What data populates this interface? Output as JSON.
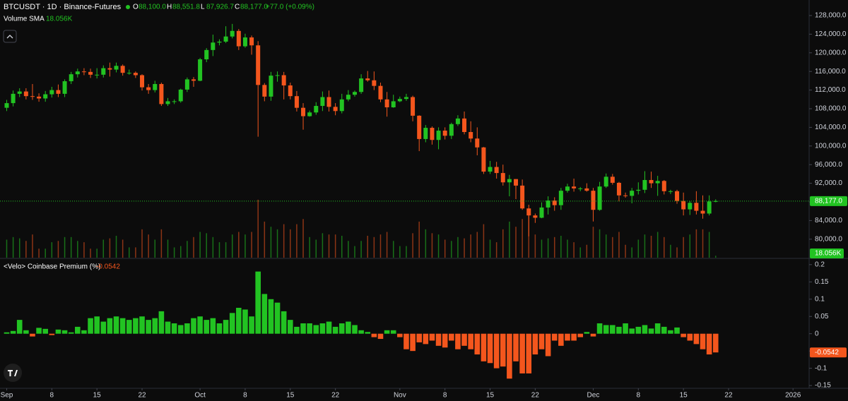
{
  "chart_data": [
    {
      "type": "candlestick",
      "title": "BTCUSDT · 1D · Binance-Futures",
      "ohlc_labels": [
        {
          "key": "O",
          "text": "88,100.0"
        },
        {
          "key": "H",
          "text": "88,551.8"
        },
        {
          "key": "L",
          "text": "87,926.7"
        },
        {
          "key": "C",
          "text": "88,177.0"
        }
      ],
      "change": "+77.0 (+0.09%)",
      "indicator": {
        "name": "Volume SMA",
        "value": "18.056K"
      },
      "up_color": "#22c322",
      "down_color": "#f4561d",
      "open": [
        108200,
        109200,
        111200,
        111700,
        110700,
        110600,
        110200,
        111100,
        112000,
        111200,
        113900,
        115400,
        116000,
        115900,
        115300,
        115300,
        116700,
        116400,
        117200,
        115700,
        115700,
        115200,
        112600,
        112000,
        113300,
        109000,
        109600,
        109600,
        112100,
        114300,
        114000,
        118600,
        120600,
        122200,
        122400,
        123500,
        124700,
        121400,
        123300,
        121600,
        113100,
        110600,
        115100,
        115200,
        113000,
        110700,
        108200,
        106400,
        107200,
        108600,
        110500,
        108400,
        107500,
        110000,
        111000,
        111600,
        114500,
        114100,
        112900,
        110000,
        108300,
        109600,
        110100,
        110500,
        106500,
        101500,
        103900,
        101300,
        103300,
        102200,
        104700,
        105900,
        103000,
        101600,
        99700,
        94500,
        95500,
        94200,
        92200,
        92900,
        91500,
        86600,
        85100,
        84600,
        86800,
        88300,
        87300,
        90400,
        91300,
        90900,
        90900,
        90400,
        86300,
        91300,
        93400,
        92100,
        89400,
        89300,
        90400,
        90600,
        92700,
        92000,
        92500,
        90300,
        90300,
        88200,
        86400,
        87800,
        86100,
        85500,
        88100
      ],
      "high": [
        109900,
        111900,
        112400,
        112400,
        113300,
        111300,
        111800,
        112700,
        113200,
        114300,
        115900,
        116600,
        116700,
        116600,
        116700,
        117300,
        117900,
        117900,
        117500,
        116400,
        116000,
        115400,
        113300,
        114000,
        113600,
        110300,
        110000,
        112300,
        114700,
        114800,
        118900,
        121000,
        123900,
        122900,
        125700,
        126200,
        125100,
        124100,
        123700,
        122500,
        113500,
        115900,
        116000,
        115900,
        113600,
        111800,
        109200,
        107600,
        109400,
        111700,
        111900,
        109200,
        111200,
        112000,
        111900,
        115400,
        116100,
        116000,
        113600,
        111600,
        111000,
        110600,
        111200,
        110800,
        106600,
        104500,
        104200,
        104000,
        104000,
        105000,
        106600,
        107400,
        105300,
        104000,
        99800,
        96800,
        96600,
        96000,
        93800,
        92900,
        92800,
        87400,
        85500,
        87900,
        89200,
        89000,
        91000,
        91900,
        93000,
        91200,
        92000,
        91000,
        92300,
        94100,
        94000,
        92300,
        90000,
        91000,
        92200,
        94600,
        94500,
        93600,
        92700,
        90600,
        90600,
        90000,
        88200,
        90300,
        89400,
        89400,
        88551.8
      ],
      "low": [
        107500,
        108500,
        110500,
        110000,
        109900,
        109500,
        109500,
        110400,
        110500,
        110500,
        113300,
        114700,
        115200,
        114600,
        114500,
        114700,
        114900,
        115800,
        115100,
        115300,
        114600,
        111900,
        111200,
        111500,
        108600,
        108600,
        109000,
        109300,
        111600,
        112700,
        113900,
        118000,
        119300,
        121600,
        122100,
        123100,
        120600,
        121100,
        119600,
        102000,
        109600,
        109700,
        113800,
        110000,
        110000,
        107400,
        103500,
        106300,
        106700,
        107500,
        107400,
        106600,
        107000,
        109600,
        110600,
        111200,
        113800,
        112000,
        109400,
        106300,
        108200,
        109400,
        109700,
        105300,
        98900,
        100800,
        100300,
        99300,
        101400,
        101500,
        104300,
        102500,
        100800,
        98000,
        94000,
        94000,
        93000,
        91500,
        89200,
        88600,
        86300,
        80600,
        83500,
        84500,
        85300,
        86100,
        86300,
        90000,
        90200,
        90300,
        90200,
        83800,
        86100,
        91000,
        91700,
        88100,
        88900,
        87700,
        89600,
        89900,
        91000,
        89300,
        89600,
        89700,
        87600,
        85100,
        85200,
        85300,
        84400,
        85100,
        87926.7
      ],
      "close": [
        109200,
        111200,
        111700,
        110700,
        110600,
        110200,
        111100,
        112000,
        111200,
        113900,
        115400,
        116000,
        115900,
        115300,
        115300,
        116700,
        116400,
        117200,
        115700,
        115700,
        115200,
        112600,
        112000,
        113300,
        109000,
        109600,
        109600,
        112100,
        114300,
        114000,
        118600,
        120600,
        122200,
        122400,
        123500,
        124700,
        121400,
        123300,
        121600,
        113100,
        110600,
        115100,
        115200,
        113000,
        110700,
        108200,
        106400,
        107200,
        108600,
        110500,
        108400,
        107500,
        110000,
        111000,
        111600,
        114500,
        114100,
        112900,
        110000,
        108300,
        109600,
        110100,
        110500,
        106500,
        101500,
        103900,
        101300,
        103300,
        102200,
        104700,
        105900,
        103000,
        101600,
        99700,
        94500,
        95500,
        94200,
        92200,
        92900,
        91500,
        86600,
        85100,
        84600,
        86800,
        88300,
        87300,
        90400,
        91300,
        90900,
        90900,
        90400,
        86300,
        91300,
        93400,
        92100,
        89400,
        89300,
        90400,
        90600,
        92700,
        92000,
        92500,
        90300,
        90300,
        88200,
        86400,
        87800,
        86100,
        85500,
        88100,
        88177
      ],
      "volume": [
        14,
        16,
        15,
        13,
        18,
        7,
        7,
        12,
        13,
        16,
        16,
        13,
        12,
        7,
        7,
        14,
        15,
        17,
        14,
        8,
        8,
        22,
        18,
        14,
        22,
        14,
        8,
        9,
        13,
        16,
        20,
        19,
        16,
        12,
        12,
        18,
        20,
        18,
        20,
        45,
        28,
        24,
        22,
        26,
        22,
        26,
        30,
        16,
        14,
        19,
        18,
        18,
        17,
        13,
        9,
        13,
        17,
        16,
        18,
        20,
        13,
        9,
        9,
        19,
        28,
        22,
        19,
        18,
        14,
        13,
        16,
        15,
        18,
        20,
        26,
        14,
        12,
        22,
        28,
        24,
        30,
        35,
        18,
        14,
        15,
        16,
        17,
        14,
        12,
        8,
        10,
        24,
        22,
        18,
        16,
        20,
        10,
        8,
        14,
        18,
        17,
        20,
        16,
        10,
        8,
        16,
        18,
        22,
        22,
        20,
        1.5
      ],
      "volume_ylim": [
        0,
        200
      ],
      "xlim": [
        -1.04,
        124.5
      ],
      "ylim": [
        76030,
        131333
      ],
      "yticks": [
        {
          "value": 80000,
          "label": "80,000.0"
        },
        {
          "value": 84000,
          "label": "84,000.0"
        },
        {
          "value": 88000,
          "label": "88,000.0"
        },
        {
          "value": 92000,
          "label": "92,000.0"
        },
        {
          "value": 96000,
          "label": "96,000.0"
        },
        {
          "value": 100000,
          "label": "100,000.0"
        },
        {
          "value": 104000,
          "label": "104,000.0"
        },
        {
          "value": 108000,
          "label": "108,000.0"
        },
        {
          "value": 112000,
          "label": "112,000.0"
        },
        {
          "value": 116000,
          "label": "116,000.0"
        },
        {
          "value": 120000,
          "label": "120,000.0"
        },
        {
          "value": 124000,
          "label": "124,000.0"
        },
        {
          "value": 128000,
          "label": "128,000.0"
        }
      ]
    },
    {
      "type": "bar",
      "title": "<Velo> Coinbase Premium (%)",
      "value_label": "-0.0542",
      "positive_color": "#22c322",
      "negative_color": "#f4561d",
      "values": [
        0.004,
        0.008,
        0.04,
        0.01,
        -0.008,
        0.017,
        0.014,
        -0.004,
        0.012,
        0.01,
        0.004,
        0.02,
        0.01,
        0.045,
        0.05,
        0.035,
        0.045,
        0.05,
        0.045,
        0.04,
        0.045,
        0.05,
        0.04,
        0.045,
        0.065,
        0.035,
        0.03,
        0.025,
        0.03,
        0.045,
        0.05,
        0.04,
        0.045,
        0.03,
        0.04,
        0.06,
        0.075,
        0.07,
        0.05,
        0.18,
        0.115,
        0.1,
        0.09,
        0.065,
        0.04,
        0.02,
        0.03,
        0.03,
        0.025,
        0.03,
        0.035,
        0.02,
        0.03,
        0.035,
        0.025,
        0.01,
        0.005,
        -0.01,
        -0.015,
        0.01,
        0.01,
        -0.01,
        -0.045,
        -0.05,
        -0.025,
        -0.03,
        -0.02,
        -0.035,
        -0.04,
        -0.02,
        -0.045,
        -0.035,
        -0.045,
        -0.06,
        -0.08,
        -0.085,
        -0.1,
        -0.095,
        -0.13,
        -0.08,
        -0.115,
        -0.115,
        -0.06,
        -0.045,
        -0.065,
        -0.02,
        -0.035,
        -0.02,
        -0.02,
        -0.01,
        0.005,
        -0.008,
        0.03,
        0.025,
        0.025,
        0.02,
        0.03,
        0.015,
        0.02,
        0.025,
        0.015,
        0.03,
        0.02,
        0.01,
        0.018,
        -0.01,
        -0.02,
        -0.03,
        -0.045,
        -0.06,
        -0.0542
      ],
      "xlim": [
        -1.04,
        124.5
      ],
      "ylim": [
        -0.158,
        0.216
      ],
      "yticks": [
        -0.15,
        -0.1,
        -0.05,
        0,
        0.05,
        0.1,
        0.15,
        0.2
      ],
      "xticks": [
        {
          "value": 0,
          "label": "Sep"
        },
        {
          "value": 7,
          "label": "8"
        },
        {
          "value": 14,
          "label": "15"
        },
        {
          "value": 21,
          "label": "22"
        },
        {
          "value": 30,
          "label": "Oct"
        },
        {
          "value": 37,
          "label": "8"
        },
        {
          "value": 44,
          "label": "15"
        },
        {
          "value": 51,
          "label": "22"
        },
        {
          "value": 61,
          "label": "Nov"
        },
        {
          "value": 68,
          "label": "8"
        },
        {
          "value": 75,
          "label": "15"
        },
        {
          "value": 82,
          "label": "22"
        },
        {
          "value": 91,
          "label": "Dec"
        },
        {
          "value": 98,
          "label": "8"
        },
        {
          "value": 105,
          "label": "15"
        },
        {
          "value": 112,
          "label": "22"
        },
        {
          "value": 122,
          "label": "2026"
        }
      ]
    }
  ]
}
